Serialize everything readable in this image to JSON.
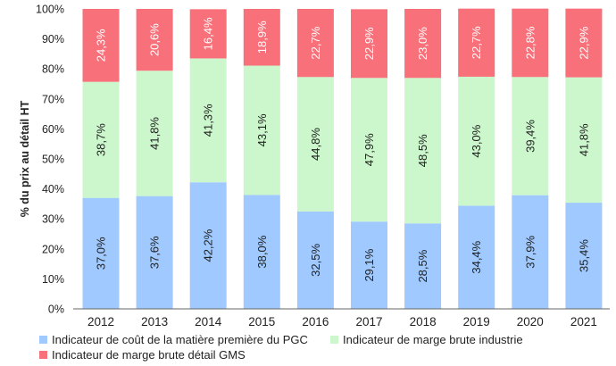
{
  "chart_data": {
    "type": "bar",
    "stacked": true,
    "categories": [
      "2012",
      "2013",
      "2014",
      "2015",
      "2016",
      "2017",
      "2018",
      "2019",
      "2020",
      "2021"
    ],
    "series": [
      {
        "name": "Indicateur de coût de la matière première du PGC",
        "color": "#9fc9ff",
        "values": [
          37.0,
          37.6,
          42.2,
          38.0,
          32.5,
          29.1,
          28.5,
          34.4,
          37.9,
          35.4
        ],
        "labels": [
          "37,0%",
          "37,6%",
          "42,2%",
          "38,0%",
          "32,5%",
          "29,1%",
          "28,5%",
          "34,4%",
          "37,9%",
          "35,4%"
        ]
      },
      {
        "name": "Indicateur de marge brute industrie",
        "color": "#ccf7cc",
        "values": [
          38.7,
          41.8,
          41.3,
          43.1,
          44.8,
          47.9,
          48.5,
          43.0,
          39.4,
          41.8
        ],
        "labels": [
          "38,7%",
          "41,8%",
          "41,3%",
          "43,1%",
          "44,8%",
          "47,9%",
          "48,5%",
          "43,0%",
          "39,4%",
          "41,8%"
        ]
      },
      {
        "name": "Indicateur de marge brute détail GMS",
        "color": "#f7707a",
        "values": [
          24.3,
          20.6,
          16.4,
          18.9,
          22.7,
          22.9,
          23.0,
          22.7,
          22.8,
          22.9
        ],
        "labels": [
          "24,3%",
          "20,6%",
          "16,4%",
          "18,9%",
          "22,7%",
          "22,9%",
          "23,0%",
          "22,7%",
          "22,8%",
          "22,9%"
        ]
      }
    ],
    "ylabel": "% du prix au détail HT",
    "xlabel": "",
    "ylim": [
      0,
      100
    ],
    "yticks": [
      "0%",
      "10%",
      "20%",
      "30%",
      "40%",
      "50%",
      "60%",
      "70%",
      "80%",
      "90%",
      "100%"
    ],
    "grid": false,
    "legend_position": "bottom"
  }
}
